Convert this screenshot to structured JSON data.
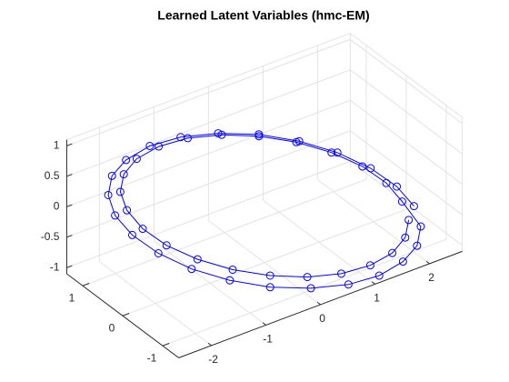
{
  "chart_data": {
    "type": "line3d",
    "title": "Learned Latent Variables (hmc-EM)",
    "color": "#0000ff",
    "marker": "o",
    "grid": true,
    "x": [
      2.3,
      2.22,
      1.99,
      1.63,
      1.15,
      0.6,
      0,
      -0.6,
      -1.15,
      -1.63,
      -1.99,
      -2.22,
      -2.3,
      -2.22,
      -1.99,
      -1.63,
      -1.15,
      -0.6,
      0,
      0.6,
      1.15,
      1.63,
      1.99,
      2.22,
      2.12,
      2.05,
      1.84,
      1.5,
      1.06,
      0.55,
      0,
      -0.55,
      -1.06,
      -1.5,
      -1.84,
      -2.05,
      -2.12,
      -2.05,
      -1.84,
      -1.5,
      -1.06,
      -0.55,
      0,
      0.55,
      1.06,
      1.5,
      1.84,
      2.05
    ],
    "y": [
      -0.6,
      -0.28,
      0.06,
      0.4,
      0.7,
      0.96,
      1.16,
      1.28,
      1.3,
      1.24,
      1.1,
      0.88,
      0.6,
      0.28,
      -0.06,
      -0.4,
      -0.7,
      -0.96,
      -1.16,
      -1.28,
      -1.3,
      -1.24,
      -1.1,
      -0.88,
      -0.55,
      -0.25,
      0.06,
      0.37,
      0.65,
      0.89,
      1.07,
      1.17,
      1.2,
      1.15,
      1.01,
      0.81,
      0.55,
      0.25,
      -0.06,
      -0.37,
      -0.65,
      -0.89,
      -1.07,
      -1.17,
      -1.2,
      -1.15,
      -1.01,
      -0.81
    ],
    "z": [
      -0.65,
      -0.46,
      -0.25,
      -0.04,
      0.16,
      0.33,
      0.45,
      0.53,
      0.56,
      0.52,
      0.45,
      0.32,
      0.15,
      -0.04,
      -0.25,
      -0.46,
      -0.66,
      -0.83,
      -0.95,
      -1.03,
      -1.06,
      -1.02,
      -0.95,
      -0.82,
      -0.54,
      -0.36,
      -0.17,
      0.02,
      0.2,
      0.35,
      0.47,
      0.55,
      0.57,
      0.54,
      0.47,
      0.35,
      0.2,
      0.02,
      -0.17,
      -0.36,
      -0.54,
      -0.69,
      -0.81,
      -0.89,
      -0.91,
      -0.88,
      -0.81,
      -0.69
    ],
    "xlim": [
      -2.6,
      2.6
    ],
    "ylim": [
      -1.4,
      1.4
    ],
    "zlim": [
      -1.1,
      1.1
    ],
    "xticks": [
      -2,
      -1,
      0,
      1,
      2
    ],
    "yticks": [
      -1,
      0,
      1
    ],
    "zticks": [
      -1,
      -0.5,
      0,
      0.5,
      1
    ]
  }
}
